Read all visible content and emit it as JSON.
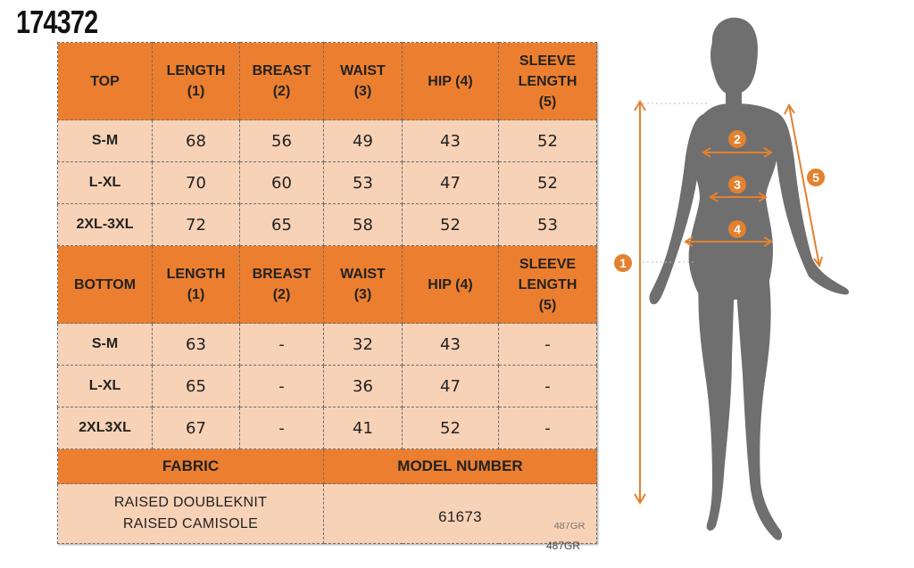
{
  "image_code": "174372",
  "colors": {
    "header": "#ec7f2f",
    "cell": "#f8d2b6",
    "measure": "#e2812f",
    "figure": "#6f6f6f"
  },
  "top_section": {
    "headers": [
      "TOP",
      "LENGTH (1)",
      "BREAST (2)",
      "WAIST (3)",
      "HIP (4)",
      "SLEEVE LENGTH (5)"
    ],
    "header_lines": [
      [
        "TOP"
      ],
      [
        "LENGTH",
        "(1)"
      ],
      [
        "BREAST",
        "(2)"
      ],
      [
        "WAIST",
        "(3)"
      ],
      [
        "HIP (4)"
      ],
      [
        "SLEEVE",
        "LENGTH",
        "(5)"
      ]
    ],
    "rows": [
      [
        "S-M",
        "68",
        "56",
        "49",
        "43",
        "52"
      ],
      [
        "L-XL",
        "70",
        "60",
        "53",
        "47",
        "52"
      ],
      [
        "2XL-3XL",
        "72",
        "65",
        "58",
        "52",
        "53"
      ]
    ]
  },
  "bottom_section": {
    "headers": [
      "BOTTOM",
      "LENGTH (1)",
      "BREAST (2)",
      "WAIST (3)",
      "HIP (4)",
      "SLEEVE LENGTH (5)"
    ],
    "header_lines": [
      [
        "BOTTOM"
      ],
      [
        "LENGTH",
        "(1)"
      ],
      [
        "BREAST",
        "(2)"
      ],
      [
        "WAIST",
        "(3)"
      ],
      [
        "HIP (4)"
      ],
      [
        "SLEEVE",
        "LENGTH",
        "(5)"
      ]
    ],
    "rows": [
      [
        "S-M",
        "63",
        "-",
        "32",
        "43",
        "-"
      ],
      [
        "L-XL",
        "65",
        "-",
        "36",
        "47",
        "-"
      ],
      [
        "2XL3XL",
        "67",
        "-",
        "41",
        "52",
        "-"
      ]
    ]
  },
  "footer": {
    "fabric_label": "FABRIC",
    "model_number_label": "MODEL NUMBER",
    "fabric_lines": [
      "RAISED DOUBLEKNIT",
      "RAISED CAMISOLE"
    ],
    "model_number": "61673"
  },
  "partial_code": "487GR",
  "small_code": "487GR",
  "figure": {
    "markers": [
      "1",
      "2",
      "3",
      "4",
      "5"
    ]
  }
}
